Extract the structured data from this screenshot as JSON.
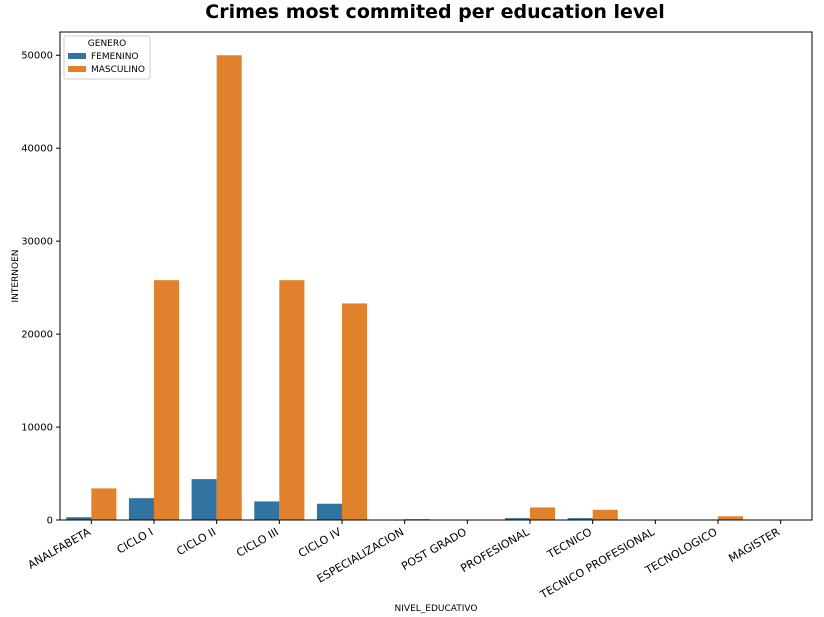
{
  "chart_data": {
    "type": "bar",
    "title": "Crimes most commited per education level",
    "xlabel": "NIVEL_EDUCATIVO",
    "ylabel": "INTERNOEN",
    "ylim": [
      0,
      52500
    ],
    "yticks": [
      0,
      10000,
      20000,
      30000,
      40000,
      50000
    ],
    "grid": false,
    "legend_placement": "top-left",
    "legend_title": "GENERO",
    "categories": [
      "ANALFABETA",
      "CICLO I",
      "CICLO II",
      "CICLO III",
      "CICLO IV",
      "ESPECIALIZACION",
      "POST GRADO",
      "PROFESIONAL",
      "TECNICO",
      "TECNICO PROFESIONAL",
      "TECNOLOGICO",
      "MAGISTER"
    ],
    "series": [
      {
        "name": "FEMENINO",
        "color": "#3274a1",
        "values": [
          300,
          2350,
          4400,
          2000,
          1750,
          0,
          0,
          200,
          200,
          0,
          0,
          0
        ]
      },
      {
        "name": "MASCULINO",
        "color": "#e1812c",
        "values": [
          3400,
          25800,
          50000,
          25800,
          23300,
          100,
          0,
          1350,
          1100,
          0,
          400,
          0
        ]
      }
    ]
  }
}
